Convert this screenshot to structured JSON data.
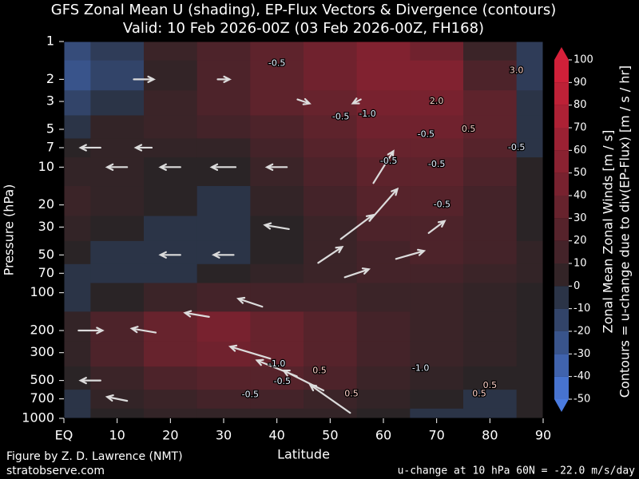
{
  "chart_data": {
    "type": "heatmap",
    "title": "GFS Zonal Mean U (shading), EP-Flux Vectors & Divergence (contours)",
    "subtitle": "Valid: 10 Feb 2026-00Z  (03 Feb 2026-00Z, FH168)",
    "xlabel": "Latitude",
    "ylabel": "Pressure (hPa)",
    "x": [
      0,
      10,
      20,
      30,
      40,
      50,
      60,
      70,
      80,
      90
    ],
    "y": [
      1,
      2,
      3,
      5,
      7,
      10,
      20,
      30,
      50,
      70,
      100,
      200,
      300,
      500,
      700,
      1000
    ],
    "z": [
      [
        -20,
        -10,
        10,
        20,
        30,
        40,
        50,
        40,
        10,
        -10
      ],
      [
        -25,
        -15,
        5,
        20,
        30,
        40,
        50,
        50,
        20,
        -10
      ],
      [
        -15,
        -5,
        10,
        20,
        30,
        35,
        45,
        45,
        30,
        -5
      ],
      [
        -5,
        5,
        10,
        15,
        20,
        30,
        40,
        40,
        30,
        -5
      ],
      [
        0,
        5,
        5,
        5,
        15,
        25,
        35,
        35,
        25,
        -5
      ],
      [
        5,
        5,
        0,
        0,
        10,
        20,
        30,
        30,
        20,
        0
      ],
      [
        10,
        5,
        0,
        -5,
        5,
        15,
        25,
        25,
        15,
        0
      ],
      [
        5,
        0,
        -5,
        -5,
        0,
        10,
        20,
        20,
        15,
        0
      ],
      [
        0,
        -5,
        -5,
        -5,
        0,
        10,
        15,
        20,
        15,
        5
      ],
      [
        -5,
        -5,
        -5,
        0,
        5,
        10,
        15,
        15,
        10,
        5
      ],
      [
        -5,
        0,
        10,
        15,
        15,
        15,
        10,
        10,
        5,
        0
      ],
      [
        5,
        20,
        35,
        45,
        35,
        25,
        15,
        10,
        5,
        0
      ],
      [
        5,
        20,
        35,
        40,
        35,
        25,
        15,
        10,
        5,
        0
      ],
      [
        0,
        10,
        20,
        25,
        25,
        20,
        10,
        5,
        0,
        0
      ],
      [
        -5,
        5,
        10,
        15,
        15,
        10,
        5,
        0,
        -5,
        0
      ],
      [
        -5,
        0,
        5,
        5,
        5,
        5,
        0,
        -5,
        -5,
        0
      ]
    ],
    "xlim": [
      0,
      90
    ],
    "xticks": [
      {
        "value": 0,
        "label": "EQ"
      },
      10,
      20,
      30,
      40,
      50,
      60,
      70,
      80,
      90
    ],
    "ylim": [
      1000,
      1
    ],
    "yscale": "log",
    "yticks": [
      1,
      2,
      3,
      5,
      7,
      10,
      20,
      30,
      50,
      70,
      100,
      200,
      300,
      500,
      700,
      1000
    ],
    "colorbar": {
      "label": "Zonal Mean Zonal Winds  [m / s]",
      "label2": "Contours = u-change due to div(EP-Flux) [m / s / hr]",
      "lim": [
        -50,
        100
      ],
      "ticks": [
        -50,
        -40,
        -30,
        -20,
        -10,
        0,
        10,
        20,
        30,
        40,
        50,
        60,
        70,
        80,
        90,
        100
      ]
    },
    "vectors": {
      "color": "#dcdcdc",
      "x": [
        5,
        15,
        25,
        35,
        35,
        40,
        45,
        50,
        5,
        10,
        20,
        30,
        40,
        50,
        55,
        55,
        60,
        60,
        65,
        70,
        40,
        30,
        20,
        10,
        15,
        30,
        45,
        55,
        5,
        15
      ],
      "y": [
        200,
        200,
        150,
        120,
        300,
        400,
        500,
        700,
        500,
        700,
        50,
        50,
        30,
        50,
        70,
        30,
        20,
        10,
        50,
        30,
        10,
        10,
        10,
        10,
        2,
        2,
        3,
        3,
        7,
        7
      ],
      "u": [
        6,
        -6,
        -6,
        -6,
        -10,
        -10,
        -10,
        -10,
        -5,
        -5,
        -5,
        -5,
        -6,
        6,
        6,
        8,
        7,
        5,
        7,
        4,
        -5,
        -6,
        -5,
        -5,
        5,
        3,
        3,
        -2,
        -5,
        -4
      ],
      "v": [
        0,
        1,
        1,
        2,
        3,
        4,
        5,
        7,
        0,
        1,
        0,
        0,
        1,
        4,
        2,
        6,
        8,
        8,
        2,
        3,
        0,
        0,
        0,
        0,
        0,
        0,
        -1,
        -1,
        0,
        0
      ]
    },
    "annotations": [
      {
        "text": "-0.5",
        "x": 40,
        "y": 1.5
      },
      {
        "text": "-1.0",
        "x": 57,
        "y": 3.8
      },
      {
        "text": "-0.5",
        "x": 52,
        "y": 4
      },
      {
        "text": "2.0",
        "x": 70,
        "y": 3
      },
      {
        "text": "0.5",
        "x": 76,
        "y": 5
      },
      {
        "text": "-0.5",
        "x": 68,
        "y": 5.5
      },
      {
        "text": "-0.5",
        "x": 61,
        "y": 9
      },
      {
        "text": "-0.5",
        "x": 70,
        "y": 9.5
      },
      {
        "text": "-0.5",
        "x": 71,
        "y": 20
      },
      {
        "text": "3.0",
        "x": 85,
        "y": 1.7
      },
      {
        "text": "-0.5",
        "x": 85,
        "y": 7
      },
      {
        "text": "-1.0",
        "x": 40,
        "y": 370
      },
      {
        "text": "0.5",
        "x": 48,
        "y": 420
      },
      {
        "text": "-0.5",
        "x": 41,
        "y": 510
      },
      {
        "text": "-0.5",
        "x": 35,
        "y": 650
      },
      {
        "text": "-1.0",
        "x": 67,
        "y": 400
      },
      {
        "text": "0.5",
        "x": 54,
        "y": 640
      },
      {
        "text": "0.5",
        "x": 78,
        "y": 640
      },
      {
        "text": "0.5",
        "x": 80,
        "y": 550
      }
    ],
    "footer_left": "Figure by Z. D. Lawrence (NMT)",
    "footer_left2": "stratobserve.com",
    "footer_right": "u-change at 10 hPa 60N = -22.0 m/s/day"
  }
}
